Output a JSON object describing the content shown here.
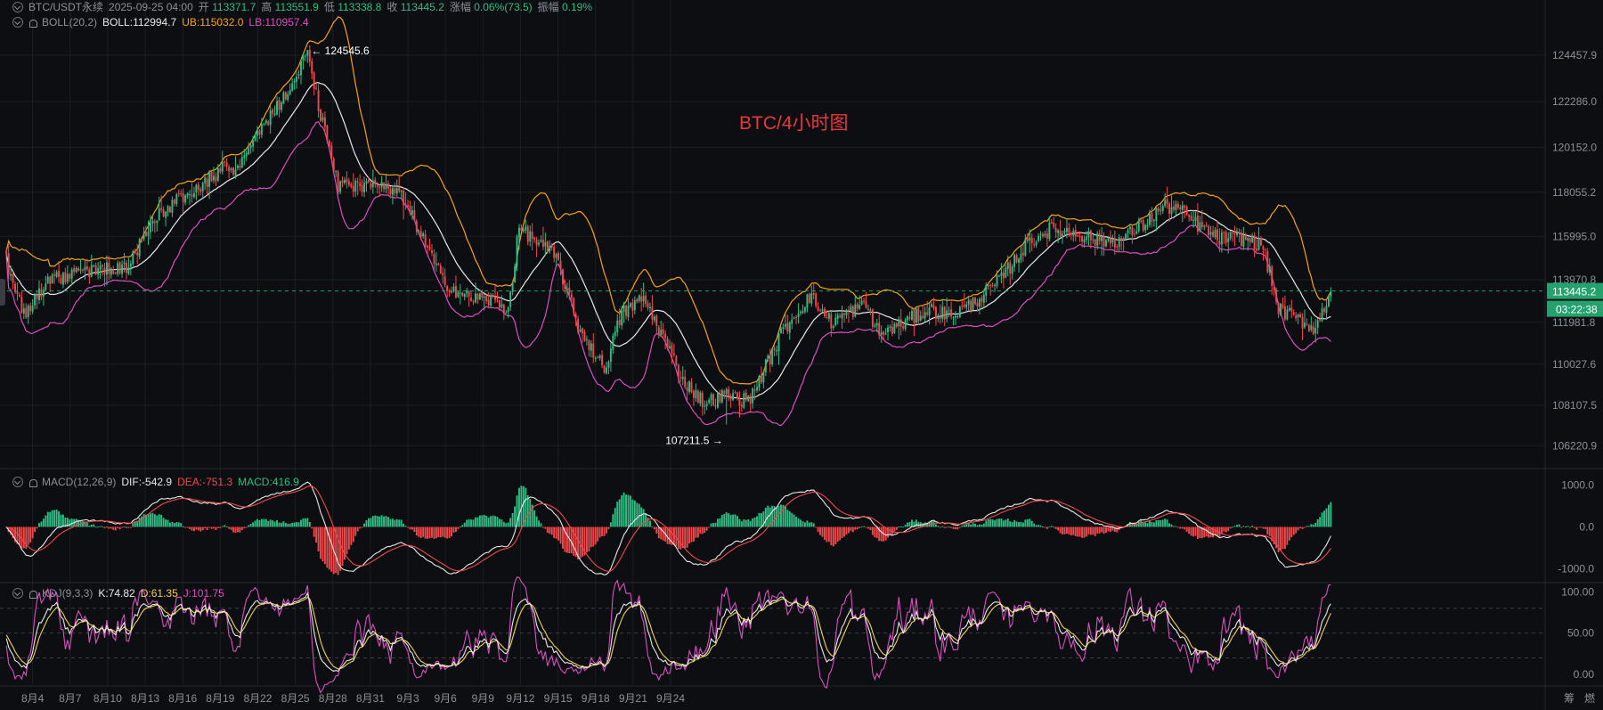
{
  "header": {
    "symbol": "BTC/USDT永续",
    "datetime": "2025-09-25 04:00",
    "open_label": "开",
    "open": "113371.7",
    "high_label": "高",
    "high": "113551.9",
    "low_label": "低",
    "low": "113338.8",
    "close_label": "收",
    "close": "113445.2",
    "change_label": "涨幅",
    "change": "0.06%(73.5)",
    "amp_label": "振幅",
    "amp": "0.19%"
  },
  "boll": {
    "name": "BOLL(20,2)",
    "mid": "BOLL:112994.7",
    "ub": "UB:115032.0",
    "lb": "LB:110957.4"
  },
  "macd": {
    "name": "MACD(12,26,9)",
    "dif": "DIF:-542.9",
    "dea": "DEA:-751.3",
    "macd": "MACD:416.9"
  },
  "kdj": {
    "name": "KDJ(9,3,3)",
    "k": "K:74.82",
    "d": "D:61.35",
    "j": "J:101.75"
  },
  "watermark": "BTC/4小时图",
  "bottom_right": [
    "筹",
    "燃"
  ],
  "colors": {
    "up": "#2fbd85",
    "down": "#f0494c",
    "mid": "#e8e8e8",
    "ub": "#f7a21b",
    "lb": "#d94fc2",
    "k": "#e8e8e8",
    "d": "#f3d24b",
    "j": "#d94fc2",
    "macd_dif": "#e8e8e8",
    "macd_dea": "#f0494c",
    "badge": "#23a26d"
  },
  "chart_data": {
    "type": "candlestick",
    "timeframe": "4h",
    "x_tick_labels": [
      "8月4",
      "8月7",
      "8月10",
      "8月13",
      "8月16",
      "8月19",
      "8月22",
      "8月25",
      "8月28",
      "8月31",
      "9月3",
      "9月6",
      "9月9",
      "9月12",
      "9月15",
      "9月18",
      "9月21",
      "9月24"
    ],
    "main": {
      "y_ticks": [
        124457.9,
        122286.0,
        120152.0,
        118055.2,
        115995.0,
        113970.8,
        111981.8,
        110027.6,
        108107.5,
        106220.9
      ],
      "ylim": [
        105400,
        125700
      ],
      "current_price": "113445.2",
      "countdown": "03:22:38",
      "high_mark": "124545.6",
      "low_mark": "107211.5",
      "close_waypoints": [
        [
          0,
          114800
        ],
        [
          8,
          112300
        ],
        [
          20,
          113900
        ],
        [
          33,
          114300
        ],
        [
          40,
          114400
        ],
        [
          55,
          114600
        ],
        [
          70,
          117100
        ],
        [
          85,
          118100
        ],
        [
          100,
          119200
        ],
        [
          105,
          118900
        ],
        [
          116,
          121000
        ],
        [
          127,
          122500
        ],
        [
          138,
          124450
        ],
        [
          144,
          121700
        ],
        [
          152,
          118300
        ],
        [
          168,
          118300
        ],
        [
          180,
          118000
        ],
        [
          188,
          116500
        ],
        [
          200,
          113900
        ],
        [
          210,
          113200
        ],
        [
          222,
          113000
        ],
        [
          230,
          112600
        ],
        [
          235,
          116400
        ],
        [
          240,
          116000
        ],
        [
          252,
          115000
        ],
        [
          262,
          111800
        ],
        [
          274,
          109800
        ],
        [
          282,
          112400
        ],
        [
          292,
          113100
        ],
        [
          302,
          111100
        ],
        [
          310,
          109300
        ],
        [
          320,
          108200
        ],
        [
          330,
          108600
        ],
        [
          340,
          108300
        ],
        [
          346,
          109500
        ],
        [
          356,
          111600
        ],
        [
          368,
          113200
        ],
        [
          378,
          112000
        ],
        [
          387,
          112500
        ],
        [
          394,
          112800
        ],
        [
          400,
          111400
        ],
        [
          412,
          112000
        ],
        [
          423,
          112600
        ],
        [
          432,
          112300
        ],
        [
          442,
          112800
        ],
        [
          455,
          113900
        ],
        [
          468,
          115700
        ],
        [
          478,
          116300
        ],
        [
          490,
          116200
        ],
        [
          500,
          115800
        ],
        [
          510,
          115800
        ],
        [
          522,
          116600
        ],
        [
          530,
          117400
        ],
        [
          537,
          117300
        ],
        [
          545,
          116600
        ],
        [
          555,
          115900
        ],
        [
          568,
          115900
        ],
        [
          576,
          115500
        ],
        [
          583,
          112600
        ],
        [
          592,
          112100
        ],
        [
          600,
          111700
        ],
        [
          607,
          113445
        ]
      ],
      "series_boll": {
        "mid": "BOLL:112994.7",
        "ub": "UB:115032.0",
        "lb": "LB:110957.4"
      }
    },
    "macd": {
      "y_ticks": [
        1000.0,
        0.0,
        -1000.0
      ],
      "ylim": [
        -1350,
        1350
      ]
    },
    "kdj": {
      "y_ticks": [
        100.0,
        50.0,
        0.0
      ],
      "ylim": [
        -14,
        110
      ],
      "dashed_levels": [
        80,
        50,
        20
      ]
    }
  }
}
